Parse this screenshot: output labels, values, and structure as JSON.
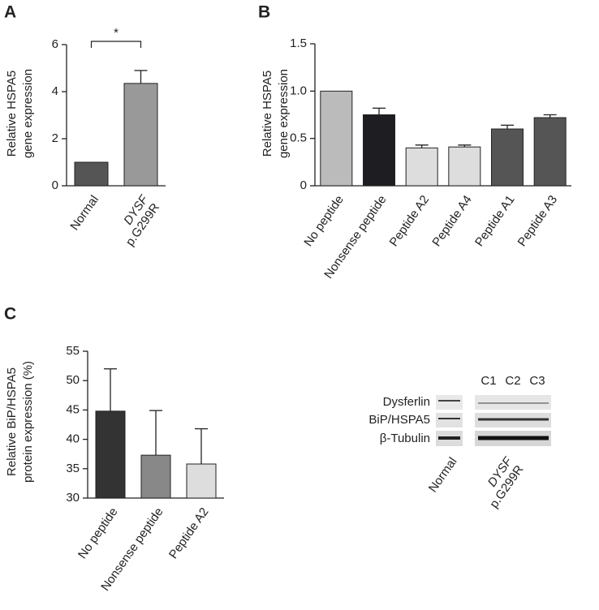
{
  "chart_data": [
    {
      "type": "bar",
      "panel": "A",
      "ylabel": [
        "Relative HSPA5",
        "gene expression"
      ],
      "categories": [
        "Normal",
        [
          "DYSF",
          "p.G299R"
        ]
      ],
      "values": [
        1,
        4.35
      ],
      "errors": [
        null,
        0.55
      ],
      "colors": [
        "#555555",
        "#999999"
      ],
      "ylim": [
        0,
        6
      ],
      "yticks": [
        0,
        2,
        4,
        6
      ],
      "significance": "*"
    },
    {
      "type": "bar",
      "panel": "B",
      "ylabel": [
        "Relative HSPA5",
        "gene expression"
      ],
      "categories": [
        "No peptide",
        "Nonsense peptide",
        "Peptide A2",
        "Peptide A4",
        "Peptide A1",
        "Peptide A3"
      ],
      "values": [
        1.0,
        0.75,
        0.4,
        0.41,
        0.6,
        0.72
      ],
      "errors": [
        null,
        0.07,
        0.03,
        0.02,
        0.04,
        0.03
      ],
      "colors": [
        "#bbbbbb",
        "#1e1e22",
        "#dddddd",
        "#dddddd",
        "#555555",
        "#555555"
      ],
      "ylim": [
        0,
        1.5
      ],
      "yticks": [
        0,
        0.5,
        {
          "value": 1,
          "label": "1.0"
        },
        1.5
      ]
    },
    {
      "type": "bar",
      "panel": "C",
      "ylabel": [
        "Relative BiP/HSPA5",
        "protein expression (%)"
      ],
      "categories": [
        "No peptide",
        "Nonsense peptide",
        "Peptide A2"
      ],
      "values": [
        44.8,
        37.3,
        35.8
      ],
      "errors": [
        7.2,
        7.6,
        6.0
      ],
      "colors": [
        "#333333",
        "#888888",
        "#dddddd"
      ],
      "ylim": [
        30,
        55
      ],
      "yticks": [
        30,
        35,
        40,
        45,
        50,
        55
      ]
    }
  ],
  "blot": {
    "rows": [
      "Dysferlin",
      "BiP/HSPA5",
      "β-Tubulin"
    ],
    "lanes": [
      "C1",
      "C2",
      "C3"
    ],
    "groups": [
      "Normal",
      [
        "DYSF",
        "p.G299R"
      ]
    ]
  }
}
